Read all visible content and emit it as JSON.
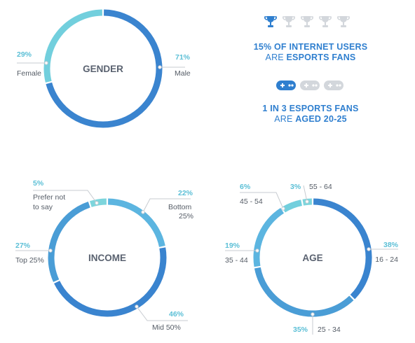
{
  "colors": {
    "dark_blue": "#3a84cf",
    "mid_blue": "#4a9dd6",
    "light_blue": "#5cb5e0",
    "teal": "#72cfdd",
    "pale_teal": "#7dd5dc",
    "label_pct": "#5bbfd6",
    "label_text": "#555c66",
    "center_text": "#5a6270",
    "stat_blue": "#2f7fcf",
    "icon_gray": "#d3d7dc",
    "leader": "#c7cbd0"
  },
  "stats": {
    "trophies": {
      "filled": 1,
      "total": 5,
      "icon": "trophy-icon"
    },
    "line1a": "15% OF INTERNET USERS",
    "line1b_prefix": "ARE ",
    "line1b_bold": "ESPORTS FANS",
    "gamepads": {
      "filled": 1,
      "total": 3,
      "icon": "gamepad-icon"
    },
    "line2a": "1 IN 3 ESPORTS FANS",
    "line2b_prefix": "ARE ",
    "line2b_bold": "AGED 20-25"
  },
  "chart_data": [
    {
      "type": "pie",
      "title": "GENDER",
      "slices": [
        {
          "label": "Male",
          "value": 71,
          "pct": "71%",
          "color": "#3a84cf"
        },
        {
          "label": "Female",
          "value": 29,
          "pct": "29%",
          "color": "#72cfdd"
        }
      ]
    },
    {
      "type": "pie",
      "title": "INCOME",
      "slices": [
        {
          "label": "Bottom 25%",
          "value": 22,
          "pct": "22%",
          "color": "#5cb5e0"
        },
        {
          "label": "Mid 50%",
          "value": 46,
          "pct": "46%",
          "color": "#3a84cf"
        },
        {
          "label": "Top 25%",
          "value": 27,
          "pct": "27%",
          "color": "#4a9dd6"
        },
        {
          "label": "Prefer not to say",
          "value": 5,
          "pct": "5%",
          "color": "#7dd5dc"
        }
      ]
    },
    {
      "type": "pie",
      "title": "AGE",
      "slices": [
        {
          "label": "16 - 24",
          "value": 38,
          "pct": "38%",
          "color": "#3a84cf"
        },
        {
          "label": "25 - 34",
          "value": 35,
          "pct": "35%",
          "color": "#4a9dd6"
        },
        {
          "label": "35 - 44",
          "value": 19,
          "pct": "19%",
          "color": "#5cb5e0"
        },
        {
          "label": "45 - 54",
          "value": 6,
          "pct": "6%",
          "color": "#72cfdd"
        },
        {
          "label": "55 - 64",
          "value": 3,
          "pct": "3%",
          "color": "#7dd5dc"
        }
      ]
    }
  ]
}
